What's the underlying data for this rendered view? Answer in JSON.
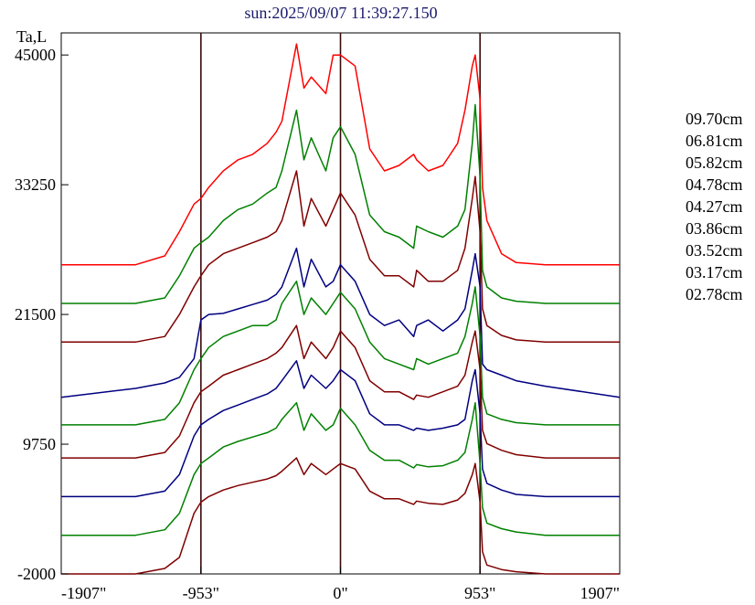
{
  "chart_data": {
    "type": "line",
    "title": "sun:2025/09/07 11:39:27.150",
    "ylabel": "Ta,L",
    "xlim": [
      -1907,
      1907
    ],
    "ylim": [
      -2000,
      47000
    ],
    "yticks": [
      45000,
      33250,
      21500,
      9750,
      -2000
    ],
    "ytick_labels": [
      "45000",
      "33250",
      "21500",
      "9750",
      "-2000"
    ],
    "xticks": [
      -1907,
      -953,
      0,
      953,
      1907
    ],
    "xtick_labels": [
      "-1907\"",
      "-953\"",
      "0\"",
      "953\"",
      "1907\""
    ],
    "vlines": [
      -953,
      0,
      953
    ],
    "legend_position": "right",
    "grid": false,
    "x": [
      -1907,
      -1400,
      -1200,
      -1100,
      -1000,
      -953,
      -900,
      -800,
      -700,
      -600,
      -500,
      -440,
      -400,
      -300,
      -250,
      -200,
      -100,
      -50,
      0,
      100,
      200,
      300,
      400,
      500,
      520,
      600,
      700,
      800,
      850,
      900,
      920,
      953,
      970,
      1000,
      1100,
      1200,
      1400,
      1907
    ],
    "series": [
      {
        "name": "09.70cm",
        "color": "#ff0000",
        "values": [
          26000,
          26000,
          26800,
          29000,
          31500,
          32000,
          33000,
          34500,
          35500,
          36000,
          37000,
          38000,
          39000,
          46000,
          42000,
          43000,
          41500,
          45000,
          45000,
          44000,
          36500,
          34500,
          35000,
          36000,
          35500,
          34500,
          35000,
          37000,
          40000,
          44000,
          45000,
          41000,
          33000,
          30000,
          27000,
          26200,
          26000,
          26000
        ]
      },
      {
        "name": "06.81cm",
        "color": "#008000",
        "values": [
          22500,
          22500,
          23000,
          25000,
          27500,
          28000,
          28500,
          30000,
          31000,
          31500,
          32500,
          33000,
          34500,
          40000,
          35500,
          37500,
          34500,
          37500,
          38500,
          36000,
          30500,
          29000,
          28500,
          27500,
          29500,
          29000,
          28500,
          29500,
          31000,
          37000,
          40500,
          34000,
          25500,
          24000,
          23000,
          22700,
          22500,
          22500
        ]
      },
      {
        "name": "05.82cm",
        "color": "#800000",
        "values": [
          19000,
          19000,
          19500,
          21500,
          24000,
          25000,
          26000,
          27000,
          27500,
          28000,
          28500,
          29000,
          30000,
          34500,
          29500,
          32000,
          29500,
          31000,
          32500,
          30500,
          26500,
          25000,
          25000,
          24000,
          25500,
          24500,
          24500,
          25500,
          27500,
          32000,
          34000,
          29000,
          22000,
          20500,
          19600,
          19200,
          19000,
          19000
        ]
      },
      {
        "name": "04.78cm",
        "color": "#000080",
        "values": [
          14000,
          14800,
          15300,
          15800,
          17500,
          21000,
          21500,
          21600,
          22000,
          22400,
          22800,
          23300,
          24000,
          27500,
          24000,
          26500,
          24000,
          24500,
          26000,
          24500,
          21500,
          20500,
          21000,
          19500,
          20500,
          21000,
          20000,
          21000,
          22000,
          25500,
          27000,
          24000,
          17000,
          16500,
          16000,
          15500,
          15000,
          14000
        ]
      },
      {
        "name": "04.27cm",
        "color": "#008000",
        "values": [
          11500,
          11500,
          12000,
          13500,
          16500,
          17500,
          18500,
          19500,
          20000,
          20500,
          20500,
          21000,
          22500,
          24500,
          21500,
          23000,
          21500,
          22500,
          23500,
          22000,
          19000,
          17500,
          17000,
          16500,
          17500,
          17000,
          17500,
          18000,
          19500,
          22500,
          24000,
          19500,
          14000,
          12500,
          12000,
          11700,
          11500,
          11500
        ]
      },
      {
        "name": "03.86cm",
        "color": "#800000",
        "values": [
          8500,
          8500,
          9000,
          10500,
          13500,
          14500,
          15000,
          16000,
          16500,
          17000,
          17500,
          18000,
          18500,
          20500,
          17500,
          19000,
          17500,
          18500,
          20000,
          18500,
          15500,
          14500,
          14500,
          13800,
          14200,
          14000,
          14500,
          15000,
          16000,
          19000,
          20000,
          16500,
          11000,
          9800,
          9200,
          8800,
          8500,
          8500
        ]
      },
      {
        "name": "03.52cm",
        "color": "#000080",
        "values": [
          5000,
          5000,
          5500,
          7000,
          10500,
          11500,
          12000,
          12800,
          13300,
          13800,
          14300,
          14800,
          15500,
          17300,
          14800,
          16000,
          14800,
          15500,
          16500,
          15500,
          12500,
          11500,
          11500,
          11000,
          11200,
          11000,
          11200,
          11500,
          12000,
          15500,
          16500,
          12500,
          7500,
          6200,
          5600,
          5200,
          5000,
          5000
        ]
      },
      {
        "name": "03.17cm",
        "color": "#008000",
        "values": [
          1500,
          1500,
          2000,
          3500,
          7000,
          8000,
          8500,
          9500,
          10000,
          10400,
          10800,
          11200,
          12000,
          13500,
          11000,
          12500,
          11000,
          11500,
          13000,
          11500,
          9200,
          8300,
          8300,
          7600,
          7900,
          7700,
          7800,
          8300,
          9000,
          12000,
          13500,
          8000,
          4000,
          2600,
          2100,
          1800,
          1500,
          1500
        ]
      },
      {
        "name": "02.78cm",
        "color": "#800000",
        "values": [
          -2000,
          -2000,
          -1500,
          -500,
          3500,
          4500,
          5000,
          5600,
          6000,
          6300,
          6600,
          6900,
          7300,
          8500,
          7000,
          8000,
          7000,
          7500,
          8000,
          7500,
          5500,
          4800,
          4800,
          4300,
          4600,
          4400,
          4300,
          4700,
          5300,
          7000,
          8000,
          4500,
          0,
          -1200,
          -1600,
          -1800,
          -2000,
          -2000
        ]
      }
    ]
  }
}
